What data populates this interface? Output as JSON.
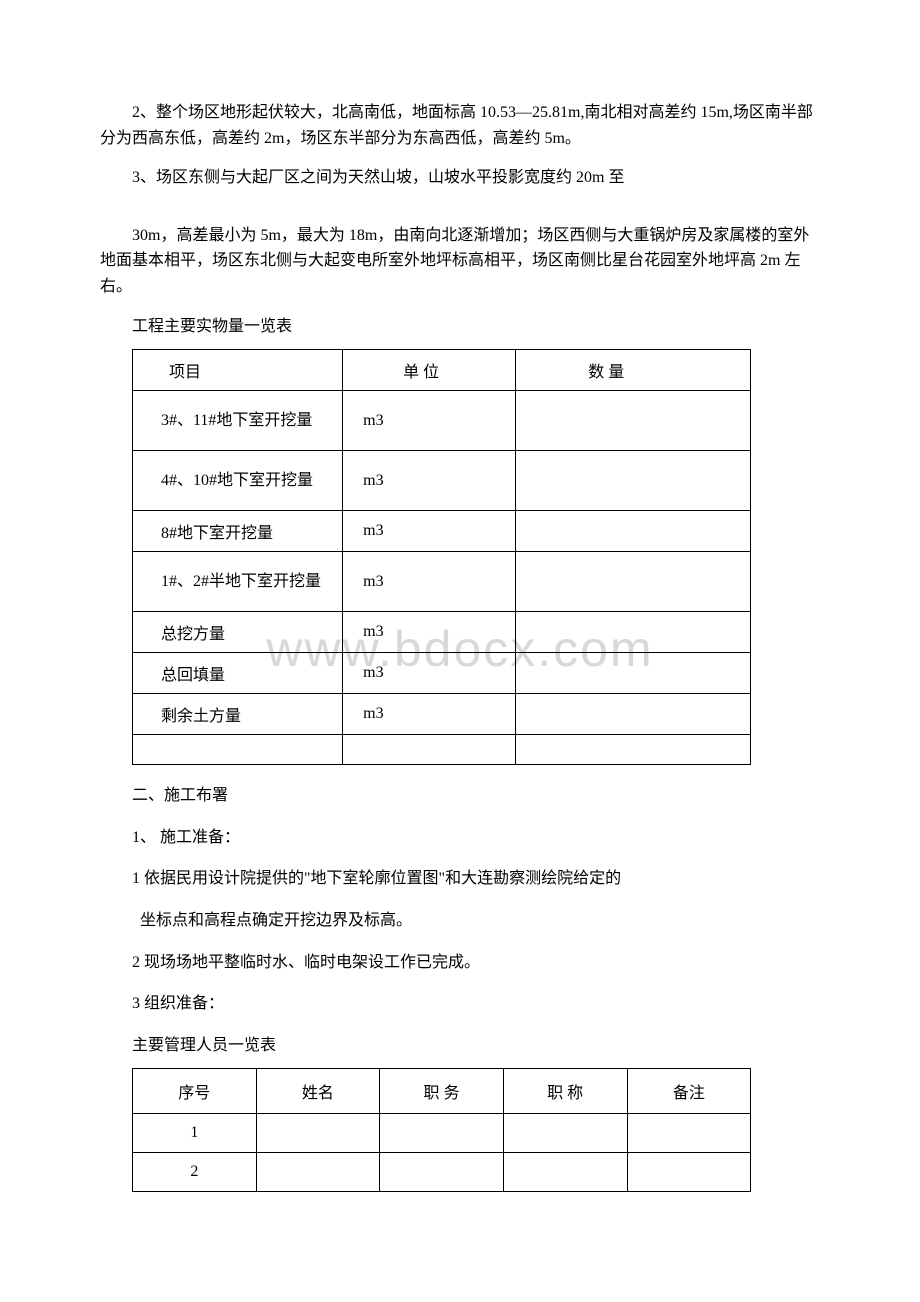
{
  "watermark_text": "www.bdocx.com",
  "paragraphs": {
    "p1": "2、整个场区地形起伏较大，北高南低，地面标高 10.53—25.81m,南北相对高差约 15m,场区南半部分为西高东低，高差约 2m，场区东半部分为东高西低，高差约 5m。",
    "p2": "3、场区东侧与大起厂区之间为天然山坡，山坡水平投影宽度约 20m 至",
    "p3": "30m，高差最小为 5m，最大为 18m，由南向北逐渐增加；场区西侧与大重锅炉房及家属楼的室外地面基本相平，场区东北侧与大起变电所室外地坪标高相平，场区南侧比星台花园室外地坪高 2m 左右。"
  },
  "table1": {
    "title": "工程主要实物量一览表",
    "headers": [
      "项目",
      "单 位",
      "数 量"
    ],
    "rows": [
      {
        "label": "3#、11#地下室开挖量",
        "unit": "m3",
        "value": "",
        "rowClass": "double-row"
      },
      {
        "label": "4#、10#地下室开挖量",
        "unit": "m3",
        "value": "",
        "rowClass": "double-row"
      },
      {
        "label": "8#地下室开挖量",
        "unit": "m3",
        "value": "",
        "rowClass": "single-row"
      },
      {
        "label": "1#、2#半地下室开挖量",
        "unit": "m3",
        "value": "",
        "rowClass": "double-row"
      },
      {
        "label": "总挖方量",
        "unit": "m3",
        "value": "",
        "rowClass": "single-row"
      },
      {
        "label": "总回填量",
        "unit": "m3",
        "value": "",
        "rowClass": "single-row"
      },
      {
        "label": "剩余土方量",
        "unit": "m3",
        "value": "",
        "rowClass": "single-row"
      },
      {
        "label": "",
        "unit": "",
        "value": "",
        "rowClass": "empty-row"
      }
    ]
  },
  "section2": {
    "heading": "二、施工布署",
    "item1": "1、 施工准备：",
    "sub1": "1 依据民用设计院提供的\"地下室轮廓位置图\"和大连勘察测绘院给定的",
    "sub1b": "坐标点和高程点确定开挖边界及标高。",
    "sub2": "2 现场场地平整临时水、临时电架设工作已完成。",
    "sub3": "3 组织准备："
  },
  "table2": {
    "title": "主要管理人员一览表",
    "headers": [
      "序号",
      "姓名",
      "职 务",
      "职 称",
      "备注"
    ],
    "rows": [
      {
        "seq": "1",
        "name": "",
        "duty": "",
        "title": "",
        "note": ""
      },
      {
        "seq": "2",
        "name": "",
        "duty": "",
        "title": "",
        "note": ""
      }
    ]
  }
}
